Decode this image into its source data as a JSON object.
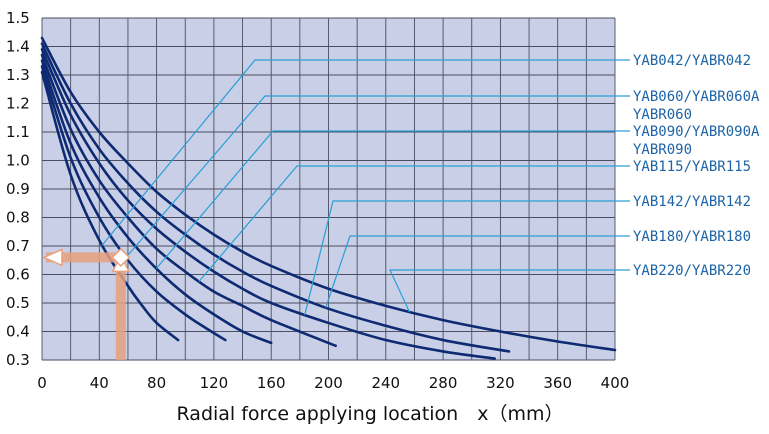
{
  "chart_data": {
    "type": "line",
    "title": "",
    "xlabel": "Radial force applying location　x（mm）",
    "ylabel": "",
    "xlim": [
      0,
      400
    ],
    "ylim": [
      0.3,
      1.5
    ],
    "x_ticks": [
      "0",
      "40",
      "80",
      "120",
      "160",
      "200",
      "240",
      "280",
      "320",
      "360",
      "400"
    ],
    "y_ticks": [
      "0.3",
      "0.4",
      "0.5",
      "0.6",
      "0.7",
      "0.8",
      "0.9",
      "1.0",
      "1.1",
      "1.2",
      "1.3",
      "1.4",
      "1.5"
    ],
    "grid": true,
    "background_color": "#c9cfe6",
    "line_color": "#0d2a72",
    "label_color": "#1d63a6",
    "series": [
      {
        "name": "YAB220/YABR220",
        "points": [
          [
            0,
            1.43
          ],
          [
            20,
            1.24
          ],
          [
            40,
            1.1
          ],
          [
            60,
            0.99
          ],
          [
            80,
            0.89
          ],
          [
            100,
            0.81
          ],
          [
            120,
            0.74
          ],
          [
            140,
            0.68
          ],
          [
            160,
            0.63
          ],
          [
            200,
            0.55
          ],
          [
            240,
            0.49
          ],
          [
            280,
            0.44
          ],
          [
            320,
            0.4
          ],
          [
            360,
            0.365
          ],
          [
            400,
            0.335
          ]
        ]
      },
      {
        "name": "YAB180/YABR180",
        "points": [
          [
            0,
            1.41
          ],
          [
            20,
            1.2
          ],
          [
            40,
            1.04
          ],
          [
            60,
            0.92
          ],
          [
            80,
            0.82
          ],
          [
            100,
            0.74
          ],
          [
            120,
            0.67
          ],
          [
            140,
            0.61
          ],
          [
            160,
            0.56
          ],
          [
            200,
            0.48
          ],
          [
            240,
            0.42
          ],
          [
            280,
            0.37
          ],
          [
            326,
            0.33
          ]
        ]
      },
      {
        "name": "YAB142/YABR142",
        "points": [
          [
            0,
            1.39
          ],
          [
            20,
            1.16
          ],
          [
            40,
            0.99
          ],
          [
            60,
            0.86
          ],
          [
            80,
            0.76
          ],
          [
            100,
            0.68
          ],
          [
            120,
            0.61
          ],
          [
            140,
            0.55
          ],
          [
            160,
            0.5
          ],
          [
            200,
            0.43
          ],
          [
            240,
            0.37
          ],
          [
            280,
            0.33
          ],
          [
            316,
            0.305
          ]
        ]
      },
      {
        "name": "YAB115/YABR115",
        "points": [
          [
            0,
            1.37
          ],
          [
            20,
            1.11
          ],
          [
            40,
            0.93
          ],
          [
            60,
            0.8
          ],
          [
            80,
            0.69
          ],
          [
            100,
            0.61
          ],
          [
            120,
            0.54
          ],
          [
            140,
            0.49
          ],
          [
            160,
            0.44
          ],
          [
            205,
            0.35
          ]
        ]
      },
      {
        "name": "YAB090/YABR090A\nYABR090",
        "points": [
          [
            0,
            1.35
          ],
          [
            20,
            1.06
          ],
          [
            40,
            0.87
          ],
          [
            60,
            0.73
          ],
          [
            80,
            0.62
          ],
          [
            100,
            0.53
          ],
          [
            120,
            0.46
          ],
          [
            140,
            0.4
          ],
          [
            160,
            0.36
          ]
        ]
      },
      {
        "name": "YAB060/YABR060A\nYABR060",
        "points": [
          [
            0,
            1.33
          ],
          [
            20,
            1.01
          ],
          [
            40,
            0.8
          ],
          [
            60,
            0.65
          ],
          [
            80,
            0.54
          ],
          [
            100,
            0.46
          ],
          [
            115,
            0.41
          ],
          [
            128,
            0.37
          ]
        ]
      },
      {
        "name": "YAB042/YABR042",
        "points": [
          [
            0,
            1.31
          ],
          [
            20,
            0.95
          ],
          [
            40,
            0.72
          ],
          [
            60,
            0.56
          ],
          [
            70,
            0.49
          ],
          [
            80,
            0.43
          ],
          [
            95,
            0.37
          ]
        ]
      }
    ],
    "legend_labels": [
      {
        "line1": "YAB042/YABR042",
        "line2": ""
      },
      {
        "line1": "YAB060/YABR060A",
        "line2": "YABR060"
      },
      {
        "line1": "YAB090/YABR090A",
        "line2": "YABR090"
      },
      {
        "line1": "YAB115/YABR115",
        "line2": ""
      },
      {
        "line1": "YAB142/YABR142",
        "line2": ""
      },
      {
        "line1": "YAB180/YABR180",
        "line2": ""
      },
      {
        "line1": "YAB220/YABR220",
        "line2": ""
      }
    ],
    "legend_placement": "right",
    "annotation_example": {
      "x": 55,
      "y": 0.66,
      "arrow_color": "#e8a07e"
    }
  }
}
